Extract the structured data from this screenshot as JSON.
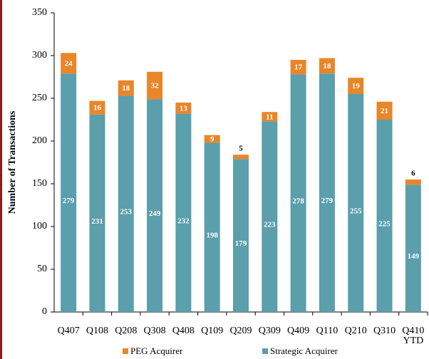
{
  "chart_data": {
    "type": "stacked_bar",
    "ylabel": "Number of Transactions",
    "categories": [
      "Q407",
      "Q108",
      "Q208",
      "Q308",
      "Q408",
      "Q109",
      "Q209",
      "Q309",
      "Q409",
      "Q110",
      "Q210",
      "Q310",
      "Q410 YTD"
    ],
    "series": [
      {
        "name": "Strategic Acquirer",
        "color": "#5a9fab",
        "values": [
          279,
          231,
          253,
          249,
          232,
          198,
          179,
          223,
          278,
          279,
          255,
          225,
          149
        ]
      },
      {
        "name": "PEG Acquirer",
        "color": "#e8862a",
        "values": [
          24,
          16,
          18,
          32,
          13,
          9,
          5,
          11,
          17,
          18,
          19,
          21,
          6
        ]
      }
    ],
    "legend_order": [
      1,
      0
    ],
    "ylim": [
      0,
      350
    ],
    "yticks": [
      0,
      50,
      100,
      150,
      200,
      250,
      300,
      350
    ]
  }
}
